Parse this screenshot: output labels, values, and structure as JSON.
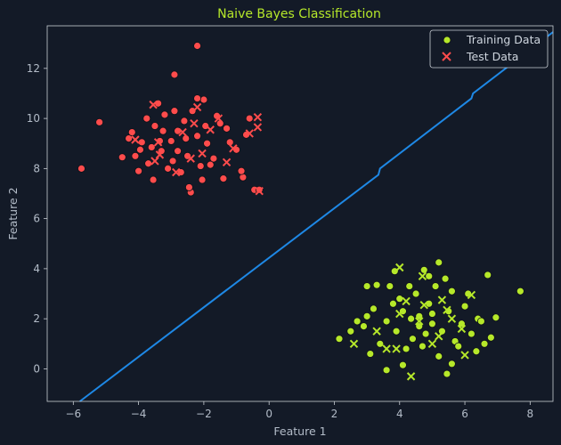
{
  "chart_data": {
    "type": "scatter",
    "title": "Naive Bayes Classification",
    "xlabel": "Feature 1",
    "ylabel": "Feature 2",
    "xlim": [
      -6.8,
      8.7
    ],
    "ylim": [
      -1.3,
      13.7
    ],
    "xticks": [
      -6,
      -4,
      -2,
      0,
      2,
      4,
      6,
      8
    ],
    "yticks": [
      0,
      2,
      4,
      6,
      8,
      10,
      12
    ],
    "grid": false,
    "legend_position": "top-right",
    "colors": {
      "background": "#131a27",
      "axes_edge": "#c8cdd3",
      "class_a": "#ff4c4c",
      "class_b": "#b6e82a",
      "boundary": "#1e88e5",
      "title": "#b6e82a"
    },
    "legend": [
      {
        "label": "Training Data",
        "marker": "circle",
        "color": "#b6e82a"
      },
      {
        "label": "Test Data",
        "marker": "x",
        "color": "#ff4c4c"
      }
    ],
    "series": [
      {
        "name": "Training Data",
        "marker": "circle",
        "points": [
          [
            -2.8,
            8.7,
            "a"
          ],
          [
            -2.2,
            12.9,
            "a"
          ],
          [
            -5.2,
            9.85,
            "a"
          ],
          [
            -5.75,
            8.0,
            "a"
          ],
          [
            -2.9,
            11.75,
            "a"
          ],
          [
            -2.0,
            10.75,
            "a"
          ],
          [
            -3.4,
            10.6,
            "a"
          ],
          [
            -2.2,
            10.8,
            "a"
          ],
          [
            -1.6,
            10.1,
            "a"
          ],
          [
            -0.45,
            7.15,
            "a"
          ],
          [
            -0.8,
            7.65,
            "a"
          ],
          [
            -2.4,
            7.05,
            "a"
          ],
          [
            -4.3,
            9.2,
            "a"
          ],
          [
            -4.1,
            8.5,
            "a"
          ],
          [
            -3.55,
            7.55,
            "a"
          ],
          [
            -3.0,
            9.1,
            "a"
          ],
          [
            -3.25,
            9.5,
            "a"
          ],
          [
            -2.6,
            9.9,
            "a"
          ],
          [
            -2.9,
            10.3,
            "a"
          ],
          [
            -3.5,
            9.7,
            "a"
          ],
          [
            -3.7,
            8.2,
            "a"
          ],
          [
            -3.1,
            8.0,
            "a"
          ],
          [
            -2.5,
            8.5,
            "a"
          ],
          [
            -2.2,
            9.3,
            "a"
          ],
          [
            -1.9,
            9.0,
            "a"
          ],
          [
            -1.7,
            8.4,
            "a"
          ],
          [
            -1.5,
            9.8,
            "a"
          ],
          [
            -1.3,
            9.6,
            "a"
          ],
          [
            -1.0,
            8.75,
            "a"
          ],
          [
            -0.7,
            9.35,
            "a"
          ],
          [
            -0.6,
            10.0,
            "a"
          ],
          [
            -0.85,
            7.9,
            "a"
          ],
          [
            -1.4,
            7.6,
            "a"
          ],
          [
            -2.1,
            8.1,
            "a"
          ],
          [
            -2.45,
            7.25,
            "a"
          ],
          [
            -2.7,
            7.85,
            "a"
          ],
          [
            -3.3,
            8.7,
            "a"
          ],
          [
            -3.9,
            9.05,
            "a"
          ],
          [
            -4.0,
            7.9,
            "a"
          ],
          [
            -4.5,
            8.45,
            "a"
          ],
          [
            -3.75,
            10.0,
            "a"
          ],
          [
            -3.2,
            10.15,
            "a"
          ],
          [
            -2.35,
            10.3,
            "a"
          ],
          [
            -1.95,
            9.7,
            "a"
          ],
          [
            -2.8,
            9.5,
            "a"
          ],
          [
            -3.35,
            9.1,
            "a"
          ],
          [
            -2.55,
            9.2,
            "a"
          ],
          [
            -3.6,
            8.85,
            "a"
          ],
          [
            -4.2,
            9.45,
            "a"
          ],
          [
            -1.2,
            9.05,
            "a"
          ],
          [
            -0.3,
            7.15,
            "a"
          ],
          [
            -1.8,
            8.15,
            "a"
          ],
          [
            -2.95,
            8.3,
            "a"
          ],
          [
            -3.95,
            8.75,
            "a"
          ],
          [
            -2.05,
            7.55,
            "a"
          ],
          [
            4.1,
            2.3,
            "b"
          ],
          [
            4.6,
            2.1,
            "b"
          ],
          [
            5.0,
            1.8,
            "b"
          ],
          [
            4.3,
            3.3,
            "b"
          ],
          [
            3.85,
            3.9,
            "b"
          ],
          [
            7.7,
            3.1,
            "b"
          ],
          [
            6.7,
            3.75,
            "b"
          ],
          [
            2.15,
            1.2,
            "b"
          ],
          [
            3.6,
            -0.05,
            "b"
          ],
          [
            4.1,
            0.15,
            "b"
          ],
          [
            5.45,
            -0.2,
            "b"
          ],
          [
            5.6,
            0.2,
            "b"
          ],
          [
            6.35,
            0.7,
            "b"
          ],
          [
            6.8,
            1.25,
            "b"
          ],
          [
            6.95,
            2.05,
            "b"
          ],
          [
            4.75,
            3.95,
            "b"
          ],
          [
            5.2,
            4.25,
            "b"
          ],
          [
            3.3,
            3.35,
            "b"
          ],
          [
            3.0,
            3.3,
            "b"
          ],
          [
            3.0,
            2.1,
            "b"
          ],
          [
            2.5,
            1.5,
            "b"
          ],
          [
            2.9,
            1.7,
            "b"
          ],
          [
            3.2,
            2.4,
            "b"
          ],
          [
            3.6,
            1.9,
            "b"
          ],
          [
            3.9,
            1.5,
            "b"
          ],
          [
            4.0,
            2.8,
            "b"
          ],
          [
            4.4,
            1.2,
            "b"
          ],
          [
            4.7,
            0.9,
            "b"
          ],
          [
            4.9,
            2.6,
            "b"
          ],
          [
            5.1,
            3.3,
            "b"
          ],
          [
            5.3,
            1.5,
            "b"
          ],
          [
            5.5,
            2.3,
            "b"
          ],
          [
            5.7,
            1.1,
            "b"
          ],
          [
            5.9,
            1.8,
            "b"
          ],
          [
            6.0,
            2.5,
            "b"
          ],
          [
            6.2,
            1.4,
            "b"
          ],
          [
            6.4,
            2.0,
            "b"
          ],
          [
            4.5,
            3.0,
            "b"
          ],
          [
            4.8,
            1.4,
            "b"
          ],
          [
            5.6,
            3.1,
            "b"
          ],
          [
            3.4,
            1.0,
            "b"
          ],
          [
            3.8,
            2.6,
            "b"
          ],
          [
            4.2,
            0.8,
            "b"
          ],
          [
            5.2,
            0.5,
            "b"
          ],
          [
            6.1,
            3.0,
            "b"
          ],
          [
            6.6,
            1.0,
            "b"
          ],
          [
            4.6,
            1.7,
            "b"
          ],
          [
            5.0,
            2.2,
            "b"
          ],
          [
            4.35,
            2.0,
            "b"
          ],
          [
            5.4,
            3.6,
            "b"
          ],
          [
            2.7,
            1.9,
            "b"
          ],
          [
            3.1,
            0.6,
            "b"
          ],
          [
            5.8,
            0.9,
            "b"
          ],
          [
            4.9,
            3.7,
            "b"
          ],
          [
            3.7,
            3.3,
            "b"
          ],
          [
            6.5,
            1.9,
            "b"
          ]
        ]
      },
      {
        "name": "Test Data",
        "marker": "x",
        "points": [
          [
            -3.5,
            8.3,
            "a"
          ],
          [
            -2.4,
            8.4,
            "a"
          ],
          [
            -0.35,
            10.05,
            "a"
          ],
          [
            -0.35,
            9.65,
            "a"
          ],
          [
            -3.35,
            8.55,
            "a"
          ],
          [
            -3.55,
            10.55,
            "a"
          ],
          [
            -2.2,
            10.45,
            "a"
          ],
          [
            -0.3,
            7.1,
            "a"
          ],
          [
            -3.4,
            9.05,
            "a"
          ],
          [
            -2.05,
            8.6,
            "a"
          ],
          [
            -1.55,
            10.0,
            "a"
          ],
          [
            -1.1,
            8.8,
            "a"
          ],
          [
            -0.6,
            9.4,
            "a"
          ],
          [
            -4.1,
            9.15,
            "a"
          ],
          [
            -2.85,
            7.85,
            "a"
          ],
          [
            -2.65,
            9.45,
            "a"
          ],
          [
            -1.8,
            9.55,
            "a"
          ],
          [
            -1.3,
            8.25,
            "a"
          ],
          [
            -2.3,
            9.8,
            "a"
          ],
          [
            4.0,
            2.2,
            "b"
          ],
          [
            5.0,
            1.0,
            "b"
          ],
          [
            5.6,
            2.0,
            "b"
          ],
          [
            3.9,
            0.8,
            "b"
          ],
          [
            4.35,
            -0.3,
            "b"
          ],
          [
            4.0,
            4.05,
            "b"
          ],
          [
            6.2,
            2.95,
            "b"
          ],
          [
            4.75,
            2.55,
            "b"
          ],
          [
            5.3,
            2.75,
            "b"
          ],
          [
            2.6,
            1.0,
            "b"
          ],
          [
            3.6,
            0.8,
            "b"
          ],
          [
            4.6,
            1.9,
            "b"
          ],
          [
            5.2,
            1.3,
            "b"
          ],
          [
            5.9,
            1.6,
            "b"
          ],
          [
            4.2,
            2.7,
            "b"
          ],
          [
            5.45,
            2.35,
            "b"
          ],
          [
            4.7,
            3.7,
            "b"
          ],
          [
            6.0,
            0.55,
            "b"
          ],
          [
            3.3,
            1.5,
            "b"
          ]
        ]
      },
      {
        "name": "",
        "type": "line",
        "points": [
          [
            -5.8,
            -1.3
          ],
          [
            3.35,
            7.75
          ],
          [
            3.4,
            8.0
          ],
          [
            6.2,
            10.8
          ],
          [
            6.25,
            11.0
          ],
          [
            8.7,
            13.45
          ]
        ]
      }
    ]
  }
}
